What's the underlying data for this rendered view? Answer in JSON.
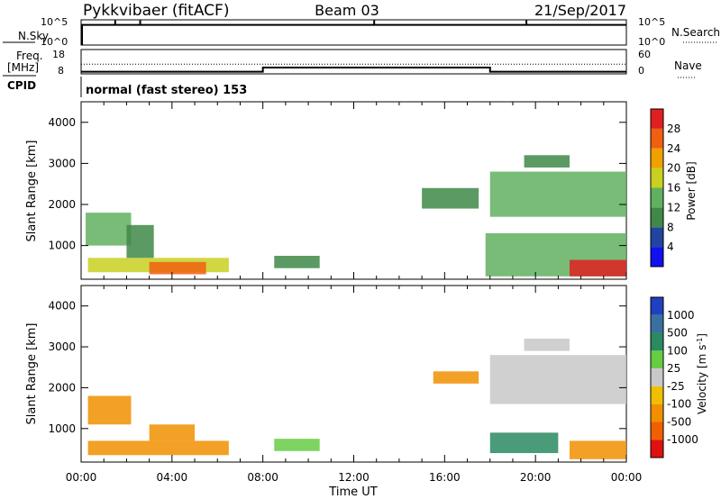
{
  "header": {
    "site": "Pykkvibaer (fitACF)",
    "beam": "Beam 03",
    "date": "21/Sep/2017"
  },
  "left_labels": {
    "nsky": "N.Sky",
    "freq": "Freq.",
    "freq_unit": "[MHz]",
    "cpid": "CPID"
  },
  "right_labels": {
    "nsearch": "N.Search",
    "nave": "Nave"
  },
  "cpid_text": "normal (fast stereo) 153",
  "colors": {
    "axis": "#000000",
    "background": "#ffffff"
  },
  "chart_data": [
    {
      "type": "line",
      "panel": "noise",
      "left_axis_ticks": [
        "10^5",
        "10^0"
      ],
      "right_axis_ticks": [
        "10^5",
        "10^0"
      ],
      "left_series_label": "N.Sky",
      "right_series_label": "N.Search",
      "x_hours": [
        0,
        0.04,
        1.5,
        2.6,
        12.9,
        19.6,
        24
      ],
      "sky_level": 0.8,
      "spikes_hours": [
        0.04,
        1.5,
        2.6,
        12.9,
        19.6
      ]
    },
    {
      "type": "line",
      "panel": "frequency / nave",
      "left_axis_ticks": [
        "18",
        "8"
      ],
      "right_axis_ticks": [
        "60",
        "0"
      ],
      "left_series_label": "Freq. [MHz]",
      "right_series_label": "Nave",
      "freq_mhz": [
        {
          "x": 0,
          "y": 8.9
        },
        {
          "x": 8,
          "y": 8.9
        },
        {
          "x": 8,
          "y": 10.6
        },
        {
          "x": 18,
          "y": 10.6
        },
        {
          "x": 18,
          "y": 8.9
        },
        {
          "x": 24,
          "y": 8.9
        }
      ],
      "nave_level": 24
    },
    {
      "type": "heatmap",
      "panel": "power",
      "xlabel": "",
      "ylabel": "Slant Range [km]",
      "colorbar_label": "Power [dB]",
      "colorbar_ticks": [
        4,
        8,
        12,
        16,
        20,
        24,
        28
      ],
      "colorbar_colors": [
        "#1010f0",
        "#2244a0",
        "#408848",
        "#60b060",
        "#c8d020",
        "#f0a000",
        "#f06010",
        "#e02020"
      ],
      "vmin": 0,
      "vmax": 32,
      "xlim": [
        0,
        24
      ],
      "ylim": [
        180,
        4500
      ],
      "y_ticks": [
        1000,
        2000,
        3000,
        4000
      ],
      "regions": [
        {
          "x0": 0.2,
          "x1": 2.2,
          "y0": 1000,
          "y1": 1800,
          "v": 14
        },
        {
          "x0": 0.3,
          "x1": 6.5,
          "y0": 350,
          "y1": 700,
          "v": 19
        },
        {
          "x0": 3.0,
          "x1": 5.5,
          "y0": 300,
          "y1": 600,
          "v": 24
        },
        {
          "x0": 2.0,
          "x1": 3.2,
          "y0": 700,
          "y1": 1500,
          "v": 11
        },
        {
          "x0": 8.5,
          "x1": 10.5,
          "y0": 450,
          "y1": 750,
          "v": 9
        },
        {
          "x0": 15.0,
          "x1": 17.5,
          "y0": 1900,
          "y1": 2400,
          "v": 8
        },
        {
          "x0": 18.0,
          "x1": 24.0,
          "y0": 1700,
          "y1": 2800,
          "v": 12
        },
        {
          "x0": 19.5,
          "x1": 21.5,
          "y0": 2900,
          "y1": 3200,
          "v": 10
        },
        {
          "x0": 17.8,
          "x1": 24.0,
          "y0": 250,
          "y1": 1300,
          "v": 15
        },
        {
          "x0": 21.5,
          "x1": 24.0,
          "y0": 250,
          "y1": 650,
          "v": 28
        }
      ]
    },
    {
      "type": "heatmap",
      "panel": "velocity",
      "xlabel": "Time UT",
      "ylabel": "Slant Range [km]",
      "colorbar_label": "Velocity [m s^-1]",
      "colorbar_ticks": [
        1000,
        500,
        100,
        25,
        -25,
        -100,
        -500,
        -1000
      ],
      "colorbar_colors": [
        "#2040c0",
        "#3a70a0",
        "#2a8a60",
        "#66cc44",
        "#c8c8c8",
        "#f0c000",
        "#f09000",
        "#f06000",
        "#e01010"
      ],
      "xlim": [
        0,
        24
      ],
      "ylim": [
        180,
        4500
      ],
      "y_ticks": [
        1000,
        2000,
        3000,
        4000
      ],
      "x_ticks": [
        "00:00",
        "04:00",
        "08:00",
        "12:00",
        "16:00",
        "20:00",
        "00:00"
      ],
      "regions": [
        {
          "x0": 0.3,
          "x1": 2.2,
          "y0": 1100,
          "y1": 1800,
          "v": -400
        },
        {
          "x0": 0.3,
          "x1": 6.5,
          "y0": 350,
          "y1": 700,
          "v": -150
        },
        {
          "x0": 3.0,
          "x1": 5.0,
          "y0": 700,
          "y1": 1100,
          "v": -150
        },
        {
          "x0": 8.5,
          "x1": 10.5,
          "y0": 450,
          "y1": 750,
          "v": 80
        },
        {
          "x0": 15.5,
          "x1": 17.5,
          "y0": 2100,
          "y1": 2400,
          "v": -200
        },
        {
          "x0": 18.0,
          "x1": 24.0,
          "y0": 1600,
          "y1": 2800,
          "v": 0
        },
        {
          "x0": 19.5,
          "x1": 21.5,
          "y0": 2900,
          "y1": 3200,
          "v": 0
        },
        {
          "x0": 18.0,
          "x1": 21.0,
          "y0": 400,
          "y1": 900,
          "v": 200
        },
        {
          "x0": 21.5,
          "x1": 24.0,
          "y0": 250,
          "y1": 700,
          "v": -150
        }
      ]
    }
  ]
}
